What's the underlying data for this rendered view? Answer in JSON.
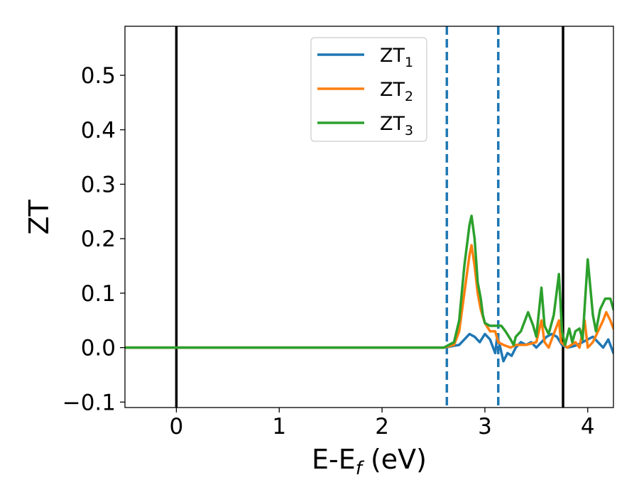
{
  "chart_data": {
    "type": "line",
    "title": "",
    "xlabel": "E-E",
    "xlabel_sub": "f",
    "xlabel_unit": " (eV)",
    "ylabel": "ZT",
    "xlim": [
      -0.5,
      4.25
    ],
    "ylim": [
      -0.11,
      0.59
    ],
    "x_ticks": [
      0,
      1,
      2,
      3,
      4
    ],
    "x_tick_labels": [
      "0",
      "1",
      "2",
      "3",
      "4"
    ],
    "y_ticks": [
      -0.1,
      0.0,
      0.1,
      0.2,
      0.3,
      0.4,
      0.5
    ],
    "y_tick_labels": [
      "−0.1",
      "0.0",
      "0.1",
      "0.2",
      "0.3",
      "0.4",
      "0.5"
    ],
    "grid": false,
    "legend_position": "top-center",
    "vertical_lines": [
      {
        "x": 0.0,
        "style": "solid",
        "color": "#000000"
      },
      {
        "x": 2.63,
        "style": "dashed",
        "color": "#1f77b4"
      },
      {
        "x": 3.13,
        "style": "dashed",
        "color": "#1f77b4"
      },
      {
        "x": 3.76,
        "style": "solid",
        "color": "#000000"
      }
    ],
    "series": [
      {
        "name": "ZT",
        "name_sub": "1",
        "color": "#1f77b4",
        "points": [
          [
            -0.5,
            0
          ],
          [
            2.6,
            0
          ],
          [
            2.75,
            0.005
          ],
          [
            2.85,
            0.025
          ],
          [
            2.9,
            0.02
          ],
          [
            2.95,
            0.01
          ],
          [
            3.0,
            0.025
          ],
          [
            3.05,
            0.015
          ],
          [
            3.1,
            -0.01
          ],
          [
            3.12,
            0.02
          ],
          [
            3.15,
            0.0
          ],
          [
            3.18,
            -0.025
          ],
          [
            3.22,
            -0.01
          ],
          [
            3.26,
            -0.015
          ],
          [
            3.3,
            0.0
          ],
          [
            3.35,
            0.01
          ],
          [
            3.4,
            0.005
          ],
          [
            3.45,
            0.01
          ],
          [
            3.5,
            0.0
          ],
          [
            3.55,
            0.01
          ],
          [
            3.6,
            0.02
          ],
          [
            3.65,
            0.025
          ],
          [
            3.7,
            0.02
          ],
          [
            3.75,
            0.005
          ],
          [
            3.8,
            0.0
          ],
          [
            3.85,
            0.002
          ],
          [
            3.9,
            0.005
          ],
          [
            3.95,
            0.01
          ],
          [
            4.0,
            0.015
          ],
          [
            4.05,
            0.02
          ],
          [
            4.1,
            0.01
          ],
          [
            4.15,
            0.0
          ],
          [
            4.2,
            0.015
          ],
          [
            4.25,
            -0.01
          ]
        ]
      },
      {
        "name": "ZT",
        "name_sub": "2",
        "color": "#ff7f0e",
        "points": [
          [
            -0.5,
            0
          ],
          [
            2.6,
            0
          ],
          [
            2.7,
            0.005
          ],
          [
            2.75,
            0.03
          ],
          [
            2.8,
            0.1
          ],
          [
            2.85,
            0.17
          ],
          [
            2.87,
            0.188
          ],
          [
            2.9,
            0.15
          ],
          [
            2.93,
            0.1
          ],
          [
            2.96,
            0.07
          ],
          [
            3.0,
            0.045
          ],
          [
            3.05,
            0.03
          ],
          [
            3.1,
            0.03
          ],
          [
            3.13,
            0.01
          ],
          [
            3.18,
            0.005
          ],
          [
            3.25,
            0.0
          ],
          [
            3.3,
            0.005
          ],
          [
            3.4,
            0.005
          ],
          [
            3.5,
            0.01
          ],
          [
            3.55,
            0.05
          ],
          [
            3.58,
            0.01
          ],
          [
            3.62,
            0.0
          ],
          [
            3.68,
            0.03
          ],
          [
            3.72,
            0.05
          ],
          [
            3.74,
            0.01
          ],
          [
            3.8,
            0.0
          ],
          [
            3.88,
            0.01
          ],
          [
            3.92,
            0.0
          ],
          [
            3.97,
            0.05
          ],
          [
            4.0,
            0.0
          ],
          [
            4.05,
            0.01
          ],
          [
            4.1,
            0.03
          ],
          [
            4.15,
            0.05
          ],
          [
            4.18,
            0.065
          ],
          [
            4.22,
            0.05
          ],
          [
            4.25,
            0.035
          ]
        ]
      },
      {
        "name": "ZT",
        "name_sub": "3",
        "color": "#2ca02c",
        "points": [
          [
            -0.5,
            0
          ],
          [
            2.6,
            0
          ],
          [
            2.7,
            0.01
          ],
          [
            2.75,
            0.05
          ],
          [
            2.8,
            0.15
          ],
          [
            2.85,
            0.225
          ],
          [
            2.87,
            0.242
          ],
          [
            2.9,
            0.2
          ],
          [
            2.93,
            0.12
          ],
          [
            2.96,
            0.09
          ],
          [
            2.98,
            0.06
          ],
          [
            3.0,
            0.045
          ],
          [
            3.05,
            0.04
          ],
          [
            3.1,
            0.04
          ],
          [
            3.13,
            0.04
          ],
          [
            3.16,
            0.04
          ],
          [
            3.2,
            0.03
          ],
          [
            3.25,
            0.015
          ],
          [
            3.28,
            0.005
          ],
          [
            3.3,
            0.02
          ],
          [
            3.35,
            0.03
          ],
          [
            3.42,
            0.065
          ],
          [
            3.47,
            0.04
          ],
          [
            3.5,
            0.02
          ],
          [
            3.55,
            0.11
          ],
          [
            3.58,
            0.04
          ],
          [
            3.62,
            0.025
          ],
          [
            3.67,
            0.06
          ],
          [
            3.72,
            0.135
          ],
          [
            3.75,
            0.03
          ],
          [
            3.78,
            0.005
          ],
          [
            3.82,
            0.035
          ],
          [
            3.85,
            0.01
          ],
          [
            3.88,
            0.03
          ],
          [
            3.92,
            0.035
          ],
          [
            3.95,
            0.015
          ],
          [
            4.0,
            0.162
          ],
          [
            4.05,
            0.06
          ],
          [
            4.08,
            0.03
          ],
          [
            4.12,
            0.07
          ],
          [
            4.17,
            0.09
          ],
          [
            4.22,
            0.09
          ],
          [
            4.25,
            0.07
          ]
        ]
      }
    ]
  }
}
